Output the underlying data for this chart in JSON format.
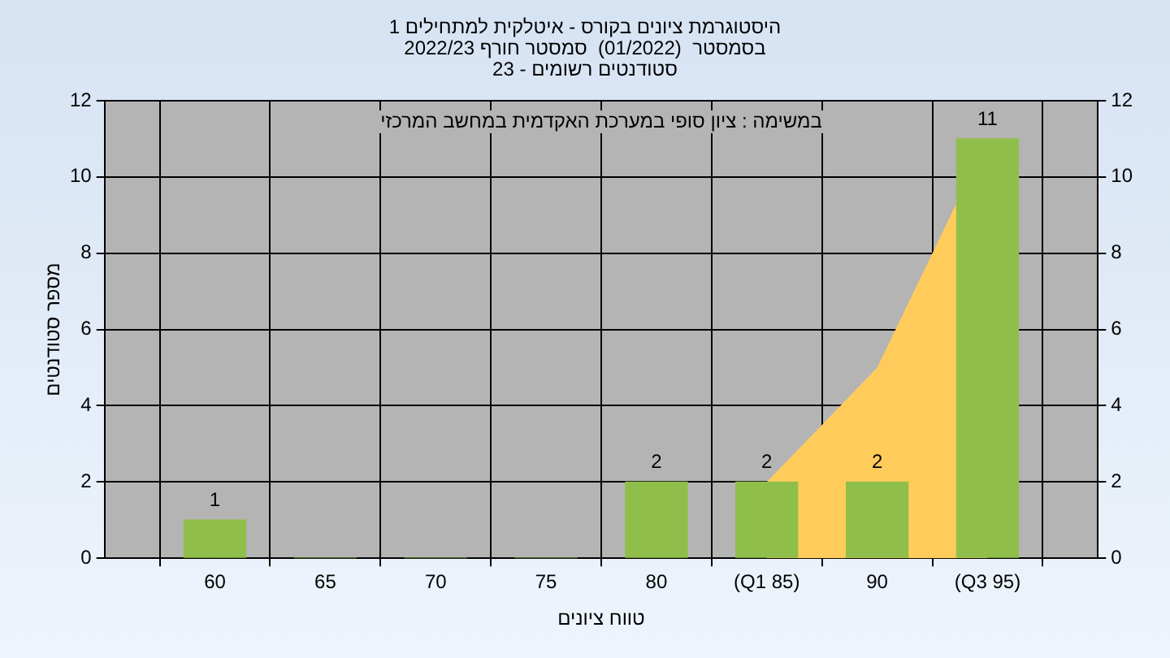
{
  "chart_data": {
    "type": "bar",
    "title": "היסטוגרמת ציונים בקורס - איטלקית למתחילים 1",
    "subtitle": "בסמסטר  (01/2022)  סמסטר חורף 2022/23\nסטודנטים רשומים - 23",
    "xlabel": "טווח ציונים",
    "ylabel": "מספר סטודנטים",
    "annotations": [
      "במשימה : ציון סופי במערכת האקדמית במחשב המרכזי"
    ],
    "categories": [
      "60",
      "65",
      "70",
      "75",
      "80",
      "(Q1 85)",
      "90",
      "(Q3 95)"
    ],
    "series": [
      {
        "type": "area",
        "color": "#ffcc5c",
        "values": [
          null,
          null,
          null,
          null,
          null,
          2,
          5,
          11
        ]
      },
      {
        "color": "#8fbf4a",
        "values": [
          1,
          0,
          0,
          0,
          2,
          2,
          2,
          11
        ],
        "value_labels": [
          "1",
          null,
          null,
          null,
          "2",
          "2",
          "2",
          "11"
        ]
      }
    ],
    "ylim": [
      0,
      12
    ],
    "yticks": [
      0,
      2,
      4,
      6,
      8,
      10,
      12
    ],
    "y2lim": [
      0,
      12
    ],
    "y2ticks": [
      0,
      2,
      4,
      6,
      8,
      10,
      12
    ],
    "grid": true,
    "legend": false
  }
}
